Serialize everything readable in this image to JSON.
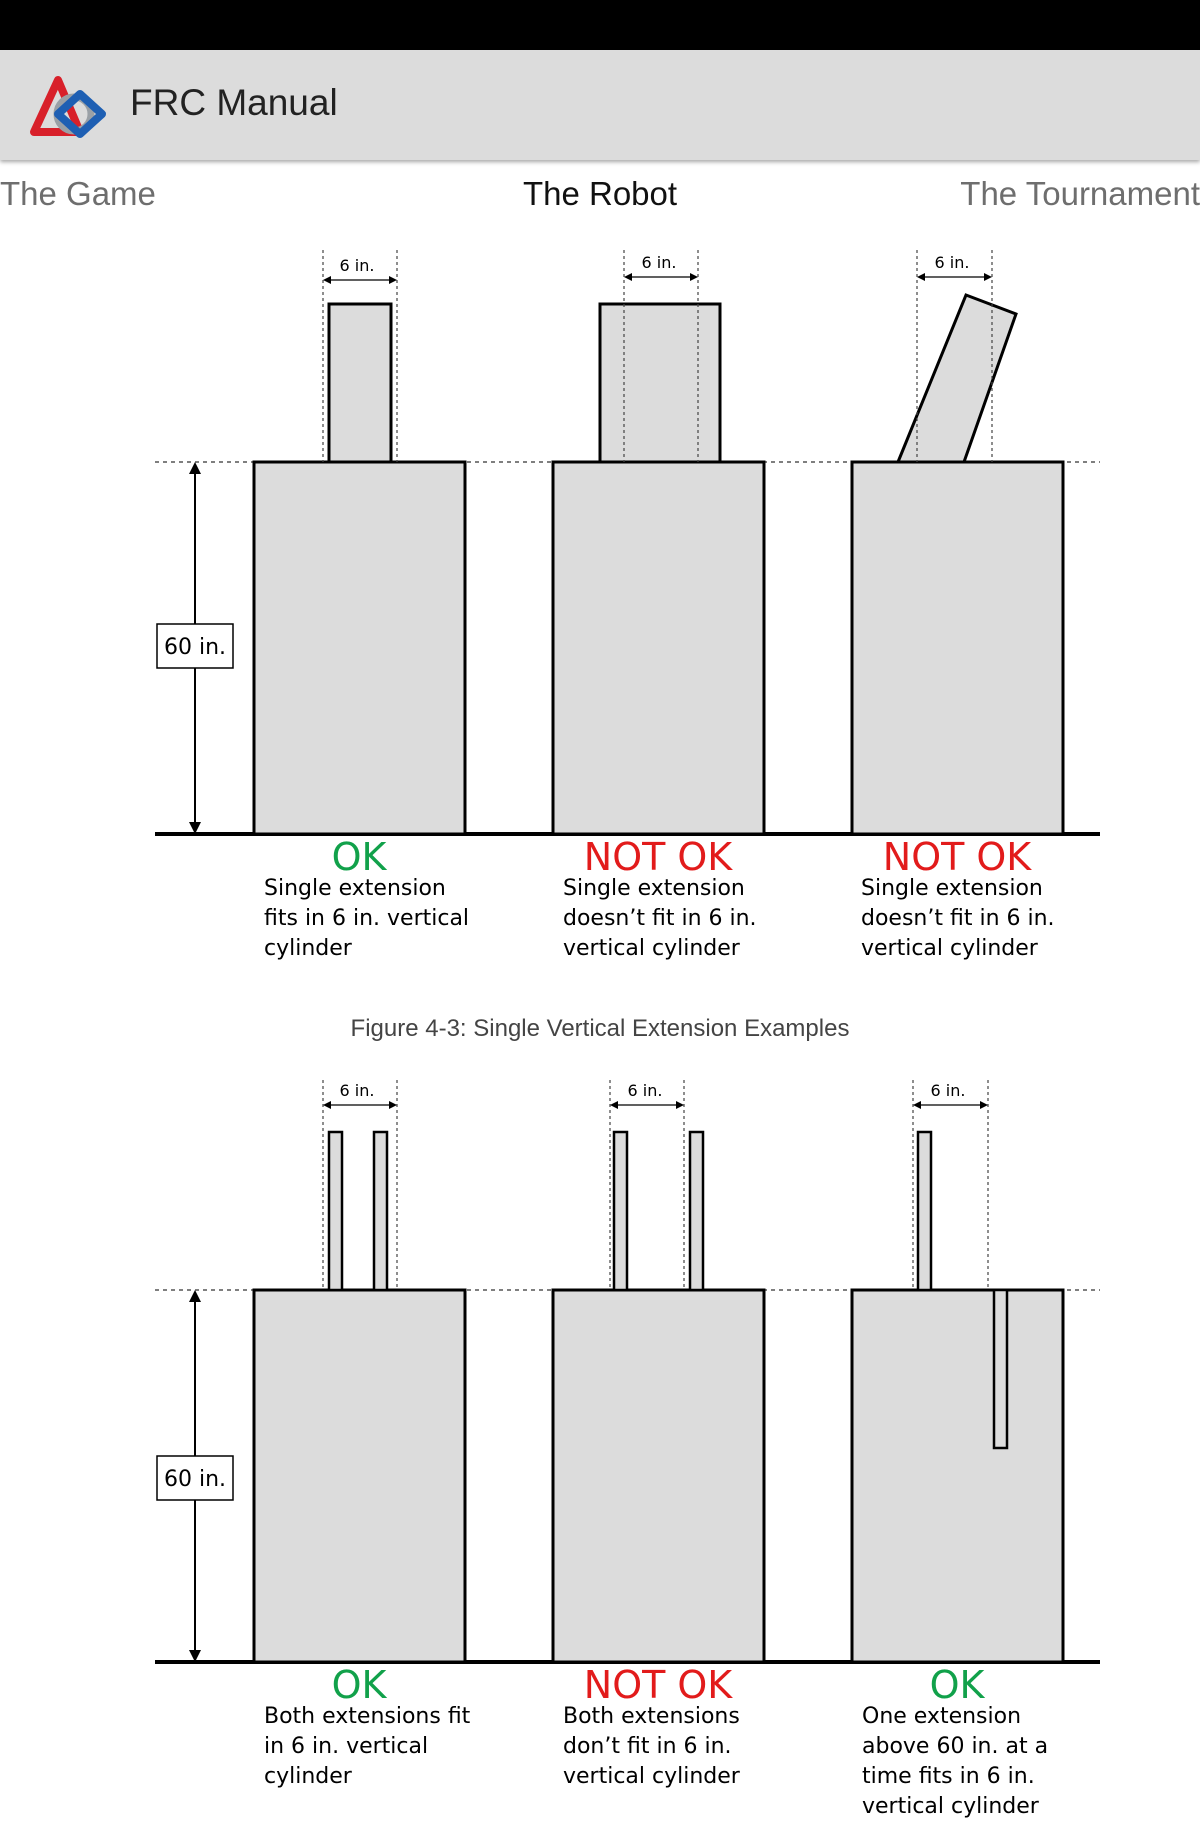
{
  "app": {
    "title": "FRC Manual"
  },
  "tabs": {
    "left": "The Game",
    "center": "The Robot",
    "right": "The Tournament"
  },
  "colors": {
    "ok": "#11a14a",
    "not_ok": "#e21b1b",
    "action_bar": "#dcdcdc"
  },
  "figure1": {
    "height_label": "60 in.",
    "robots": [
      {
        "width_label": "6 in.",
        "status": "OK",
        "desc": [
          "Single extension",
          "fits in 6 in. vertical",
          "cylinder"
        ]
      },
      {
        "width_label": "6 in.",
        "status": "NOT OK",
        "desc": [
          "Single extension",
          "doesn’t fit in 6 in.",
          "vertical cylinder"
        ]
      },
      {
        "width_label": "6 in.",
        "status": "NOT OK",
        "desc": [
          "Single extension",
          "doesn’t fit in 6 in.",
          "vertical cylinder"
        ]
      }
    ],
    "caption": "Figure 4-3: Single Vertical Extension Examples"
  },
  "figure2": {
    "height_label": "60 in.",
    "robots": [
      {
        "width_label": "6 in.",
        "status": "OK",
        "desc": [
          "Both extensions fit",
          "in 6 in. vertical",
          "cylinder"
        ]
      },
      {
        "width_label": "6 in.",
        "status": "NOT OK",
        "desc": [
          "Both extensions",
          "don’t fit in 6 in.",
          "vertical cylinder"
        ]
      },
      {
        "width_label": "6 in.",
        "status": "OK",
        "desc": [
          "One extension",
          "above 60 in. at a",
          "time fits in 6 in.",
          "vertical cylinder"
        ]
      }
    ]
  }
}
